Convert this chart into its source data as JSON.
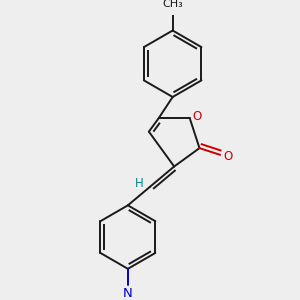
{
  "bg_color": "#eeeeee",
  "bond_color": "#1a1a1a",
  "o_color": "#cc0000",
  "n_color": "#0000cc",
  "h_color": "#008888",
  "lw": 1.4,
  "dbo": 0.012,
  "xlim": [
    0.0,
    1.0
  ],
  "ylim": [
    0.0,
    1.0
  ],
  "figsize": [
    3.0,
    3.0
  ],
  "dpi": 100,
  "fs": 8.5
}
